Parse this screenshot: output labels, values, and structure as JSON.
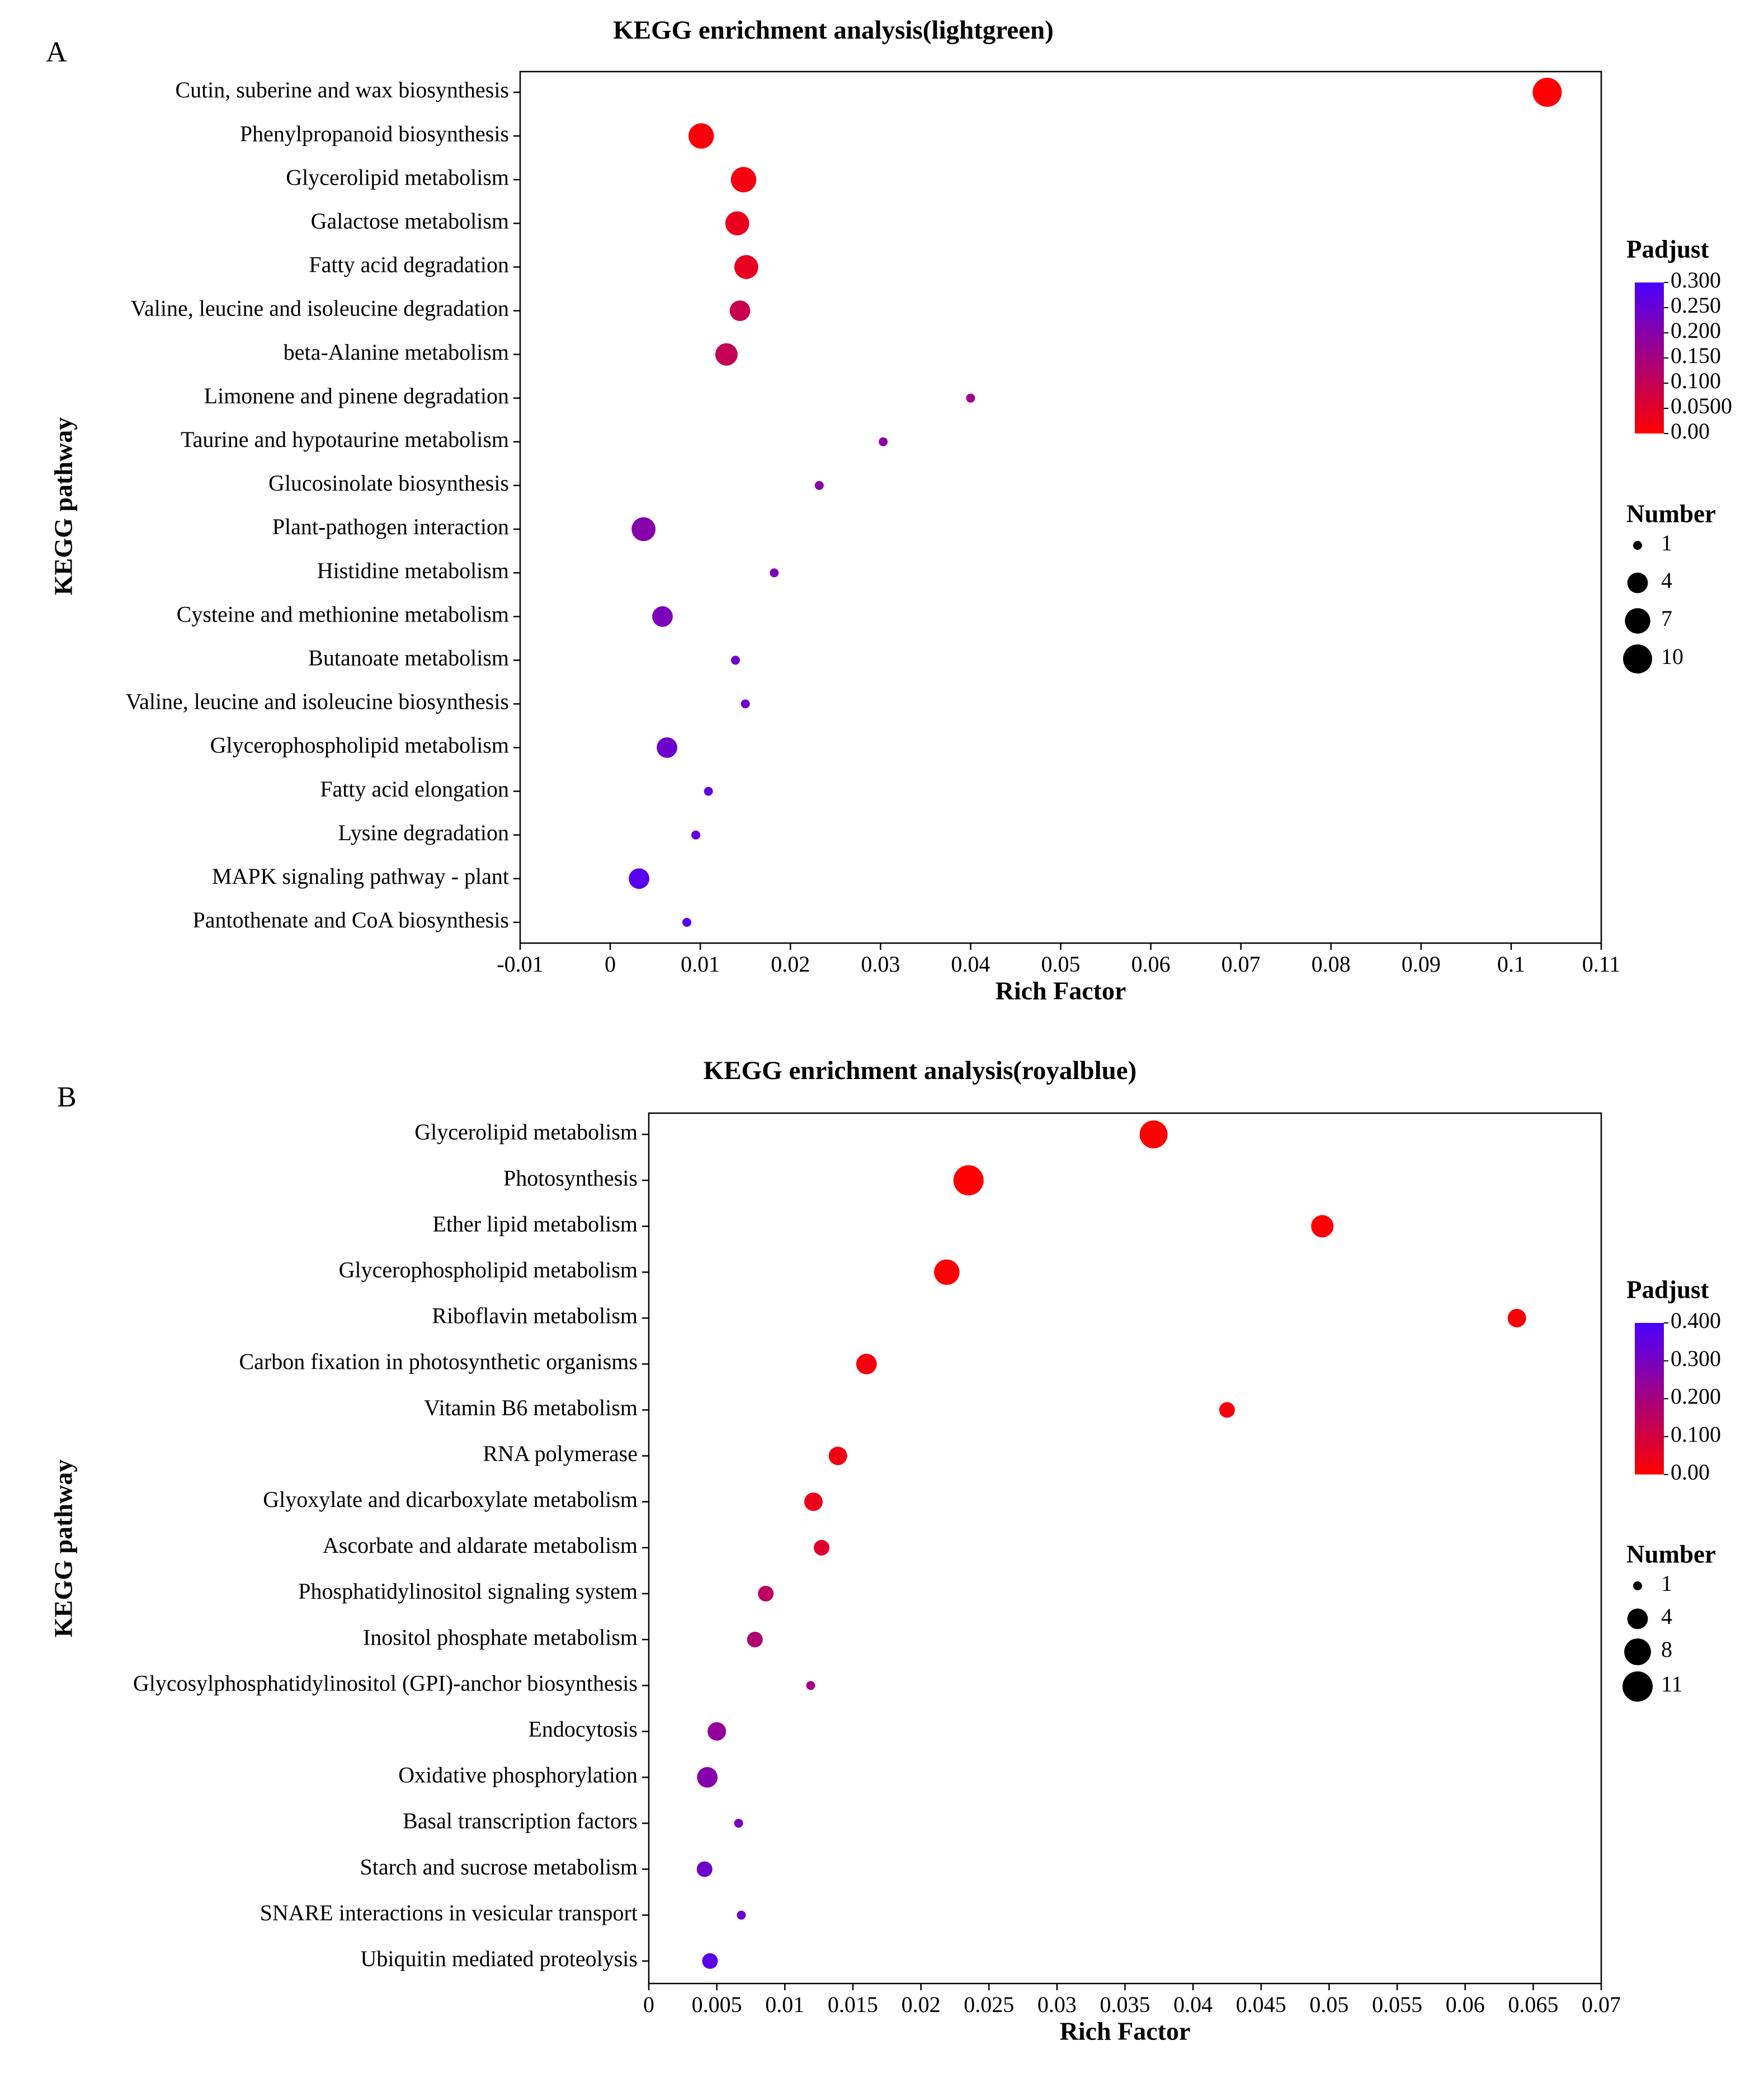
{
  "chart_data": [
    {
      "panel": "A",
      "type": "scatter",
      "title": "KEGG enrichment analysis(lightgreen)",
      "xlabel": "Rich Factor",
      "ylabel": "KEGG pathway",
      "xlim": [
        -0.01,
        0.11
      ],
      "xticks": [
        "-0.01",
        "0",
        "0.01",
        "0.02",
        "0.03",
        "0.04",
        "0.05",
        "0.06",
        "0.07",
        "0.08",
        "0.09",
        "0.1",
        "0.11"
      ],
      "xtick_values": [
        -0.01,
        0,
        0.01,
        0.02,
        0.03,
        0.04,
        0.05,
        0.06,
        0.07,
        0.08,
        0.09,
        0.1,
        0.11
      ],
      "color_legend": {
        "title": "Padjust",
        "min": 0,
        "max": 0.3,
        "low_color": "#ff0000",
        "high_color": "#4a00ff",
        "labels": [
          "0.300",
          "0.250",
          "0.200",
          "0.150",
          "0.100",
          "0.0500",
          "0.00"
        ],
        "values": [
          0.3,
          0.25,
          0.2,
          0.15,
          0.1,
          0.05,
          0
        ]
      },
      "size_legend": {
        "title": "Number",
        "labels": [
          "1",
          "4",
          "7",
          "10"
        ],
        "values": [
          1,
          4,
          7,
          10
        ],
        "max": 10
      },
      "points": [
        {
          "pathway": "Cutin, suberine and wax biosynthesis",
          "rich_factor": 0.104,
          "number": 10,
          "padjust": 0.002
        },
        {
          "pathway": "Phenylpropanoid biosynthesis",
          "rich_factor": 0.0101,
          "number": 7,
          "padjust": 0.01
        },
        {
          "pathway": "Glycerolipid metabolism",
          "rich_factor": 0.0148,
          "number": 7,
          "padjust": 0.02
        },
        {
          "pathway": "Galactose metabolism",
          "rich_factor": 0.0141,
          "number": 6,
          "padjust": 0.035
        },
        {
          "pathway": "Fatty acid degradation",
          "rich_factor": 0.0151,
          "number": 6,
          "padjust": 0.04
        },
        {
          "pathway": "Valine, leucine and isoleucine degradation",
          "rich_factor": 0.0144,
          "number": 4,
          "padjust": 0.09
        },
        {
          "pathway": "beta-Alanine metabolism",
          "rich_factor": 0.0129,
          "number": 5,
          "padjust": 0.1
        },
        {
          "pathway": "Limonene and pinene degradation",
          "rich_factor": 0.04,
          "number": 1,
          "padjust": 0.16
        },
        {
          "pathway": "Taurine and hypotaurine metabolism",
          "rich_factor": 0.0303,
          "number": 1,
          "padjust": 0.19
        },
        {
          "pathway": "Glucosinolate biosynthesis",
          "rich_factor": 0.0232,
          "number": 1,
          "padjust": 0.2
        },
        {
          "pathway": "Plant-pathogen interaction",
          "rich_factor": 0.0037,
          "number": 6,
          "padjust": 0.2
        },
        {
          "pathway": "Histidine metabolism",
          "rich_factor": 0.0182,
          "number": 1,
          "padjust": 0.22
        },
        {
          "pathway": "Cysteine and methionine metabolism",
          "rich_factor": 0.0058,
          "number": 4,
          "padjust": 0.22
        },
        {
          "pathway": "Butanoate metabolism",
          "rich_factor": 0.0139,
          "number": 1,
          "padjust": 0.24
        },
        {
          "pathway": "Valine, leucine and isoleucine biosynthesis",
          "rich_factor": 0.015,
          "number": 1,
          "padjust": 0.24
        },
        {
          "pathway": "Glycerophospholipid metabolism",
          "rich_factor": 0.0063,
          "number": 4,
          "padjust": 0.24
        },
        {
          "pathway": "Fatty acid elongation",
          "rich_factor": 0.0109,
          "number": 1,
          "padjust": 0.26
        },
        {
          "pathway": "Lysine degradation",
          "rich_factor": 0.0095,
          "number": 1,
          "padjust": 0.26
        },
        {
          "pathway": "MAPK signaling pathway - plant",
          "rich_factor": 0.0032,
          "number": 4,
          "padjust": 0.28
        },
        {
          "pathway": "Pantothenate and CoA biosynthesis",
          "rich_factor": 0.0085,
          "number": 1,
          "padjust": 0.28
        }
      ]
    },
    {
      "panel": "B",
      "type": "scatter",
      "title": "KEGG enrichment analysis(royalblue)",
      "xlabel": "Rich Factor",
      "ylabel": "KEGG pathway",
      "xlim": [
        0,
        0.07
      ],
      "xticks": [
        "0",
        "0.005",
        "0.01",
        "0.015",
        "0.02",
        "0.025",
        "0.03",
        "0.035",
        "0.04",
        "0.045",
        "0.05",
        "0.055",
        "0.06",
        "0.065",
        "0.07"
      ],
      "xtick_values": [
        0,
        0.005,
        0.01,
        0.015,
        0.02,
        0.025,
        0.03,
        0.035,
        0.04,
        0.045,
        0.05,
        0.055,
        0.06,
        0.065,
        0.07
      ],
      "color_legend": {
        "title": "Padjust",
        "min": 0,
        "max": 0.4,
        "low_color": "#ff0000",
        "high_color": "#4a00ff",
        "labels": [
          "0.400",
          "0.300",
          "0.200",
          "0.100",
          "0.00"
        ],
        "values": [
          0.4,
          0.3,
          0.2,
          0.1,
          0
        ]
      },
      "size_legend": {
        "title": "Number",
        "labels": [
          "1",
          "4",
          "8",
          "11"
        ],
        "values": [
          1,
          4,
          8,
          11
        ],
        "max": 11
      },
      "points": [
        {
          "pathway": "Glycerolipid metabolism",
          "rich_factor": 0.0371,
          "number": 9,
          "padjust": 0.001
        },
        {
          "pathway": "Photosynthesis",
          "rich_factor": 0.0235,
          "number": 11,
          "padjust": 0.001
        },
        {
          "pathway": "Ether lipid metabolism",
          "rich_factor": 0.0495,
          "number": 5,
          "padjust": 0.005
        },
        {
          "pathway": "Glycerophospholipid metabolism",
          "rich_factor": 0.0219,
          "number": 7,
          "padjust": 0.005
        },
        {
          "pathway": "Riboflavin metabolism",
          "rich_factor": 0.0638,
          "number": 3,
          "padjust": 0.01
        },
        {
          "pathway": "Carbon fixation in photosynthetic organisms",
          "rich_factor": 0.016,
          "number": 4,
          "padjust": 0.02
        },
        {
          "pathway": "Vitamin B6 metabolism",
          "rich_factor": 0.0425,
          "number": 2,
          "padjust": 0.02
        },
        {
          "pathway": "RNA polymerase",
          "rich_factor": 0.0139,
          "number": 3,
          "padjust": 0.03
        },
        {
          "pathway": "Glyoxylate and dicarboxylate metabolism",
          "rich_factor": 0.0121,
          "number": 3,
          "padjust": 0.04
        },
        {
          "pathway": "Ascorbate and aldarate metabolism",
          "rich_factor": 0.0127,
          "number": 2,
          "padjust": 0.07
        },
        {
          "pathway": "Phosphatidylinositol signaling system",
          "rich_factor": 0.0086,
          "number": 2,
          "padjust": 0.15
        },
        {
          "pathway": "Inositol phosphate metabolism",
          "rich_factor": 0.0078,
          "number": 2,
          "padjust": 0.18
        },
        {
          "pathway": "Glycosylphosphatidylinositol (GPI)-anchor biosynthesis",
          "rich_factor": 0.0119,
          "number": 1,
          "padjust": 0.2
        },
        {
          "pathway": "Endocytosis",
          "rich_factor": 0.005,
          "number": 3,
          "padjust": 0.24
        },
        {
          "pathway": "Oxidative phosphorylation",
          "rich_factor": 0.0043,
          "number": 4,
          "padjust": 0.27
        },
        {
          "pathway": "Basal transcription factors",
          "rich_factor": 0.0066,
          "number": 1,
          "padjust": 0.3
        },
        {
          "pathway": "Starch and sucrose metabolism",
          "rich_factor": 0.0041,
          "number": 2,
          "padjust": 0.32
        },
        {
          "pathway": "SNARE interactions in vesicular transport",
          "rich_factor": 0.0068,
          "number": 1,
          "padjust": 0.33
        },
        {
          "pathway": "Ubiquitin mediated proteolysis",
          "rich_factor": 0.0045,
          "number": 2,
          "padjust": 0.36
        }
      ]
    }
  ]
}
